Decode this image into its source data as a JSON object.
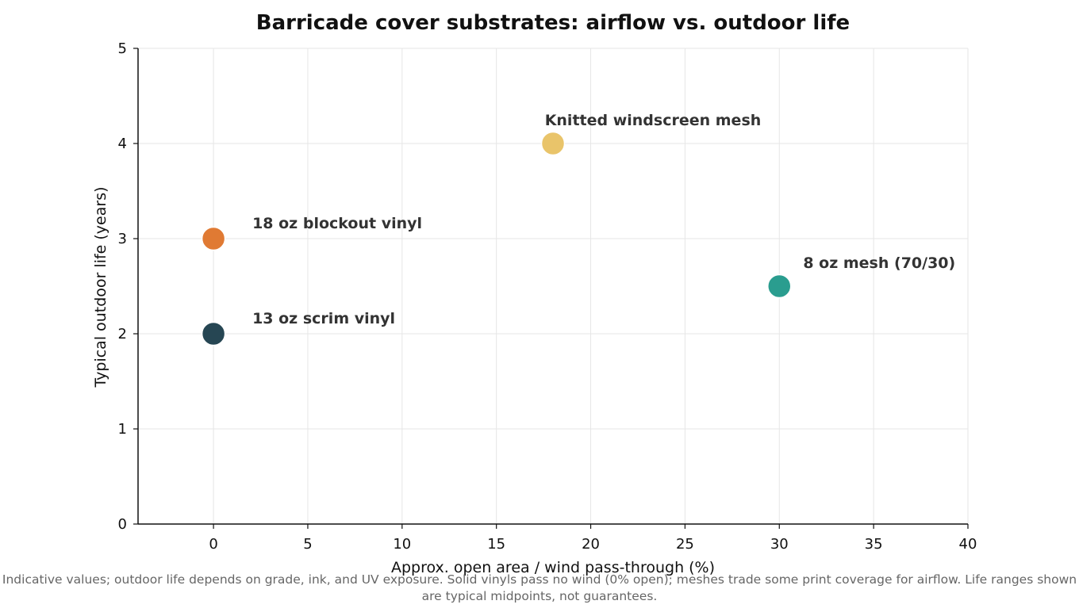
{
  "chart_data": {
    "type": "scatter",
    "title": "Barricade cover substrates: airflow vs. outdoor life",
    "xlabel": "Approx. open area / wind pass-through (%)",
    "ylabel": "Typical outdoor life (years)",
    "xlim": [
      -4,
      40
    ],
    "ylim": [
      0,
      5
    ],
    "xticks": [
      0,
      5,
      10,
      15,
      20,
      25,
      30,
      35,
      40
    ],
    "yticks": [
      0,
      1,
      2,
      3,
      4,
      5
    ],
    "grid": true,
    "points": [
      {
        "label": "18 oz blockout vinyl",
        "x": 0,
        "y": 3,
        "color": "#E07A33"
      },
      {
        "label": "13 oz scrim vinyl",
        "x": 0,
        "y": 2,
        "color": "#264653"
      },
      {
        "label": "Knitted windscreen mesh",
        "x": 18,
        "y": 4,
        "color": "#E9C46A"
      },
      {
        "label": "8 oz mesh (70/30)",
        "x": 30,
        "y": 2.5,
        "color": "#2A9D8F"
      }
    ],
    "footnote": "Indicative values; outdoor life depends on grade, ink, and UV exposure. Solid vinyls pass no wind (0% open); meshes trade some print coverage for airflow. Life ranges shown are typical midpoints, not guarantees."
  }
}
